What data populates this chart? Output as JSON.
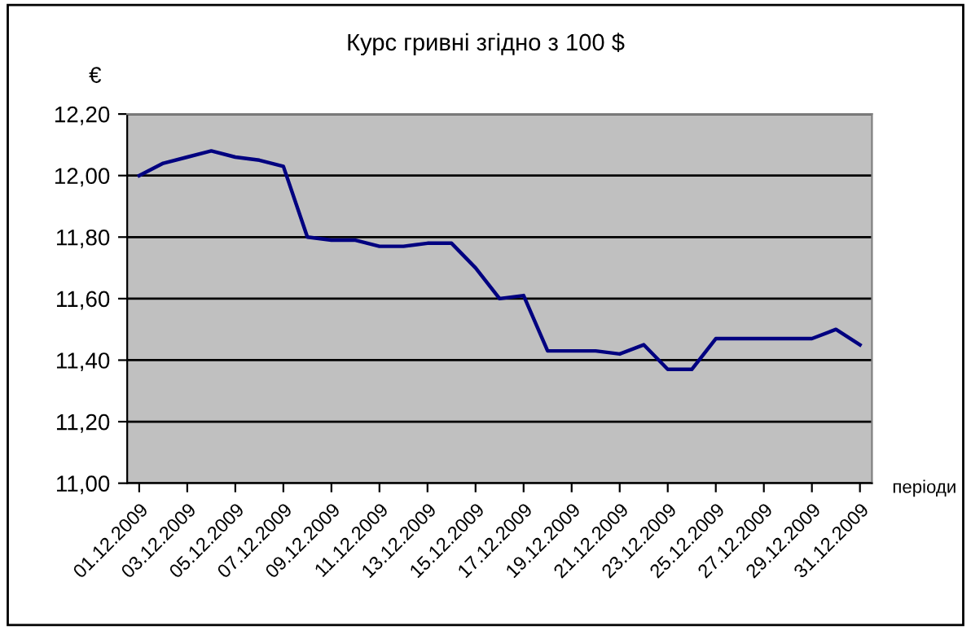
{
  "chart_data": {
    "type": "line",
    "title": "Курс гривні згідно з 100 $",
    "ylabel": "€",
    "xlabel": "періоди",
    "categories": [
      "01.12.2009",
      null,
      "03.12.2009",
      null,
      "05.12.2009",
      null,
      "07.12.2009",
      null,
      "09.12.2009",
      null,
      "11.12.2009",
      null,
      "13.12.2009",
      null,
      "15.12.2009",
      null,
      "17.12.2009",
      null,
      "19.12.2009",
      null,
      "21.12.2009",
      null,
      "23.12.2009",
      null,
      "25.12.2009",
      null,
      "27.12.2009",
      null,
      "29.12.2009",
      null,
      "31.12.2009"
    ],
    "series": [
      {
        "color": "#000080",
        "values": [
          12.0,
          12.04,
          12.06,
          12.08,
          12.06,
          12.05,
          12.03,
          11.8,
          11.79,
          11.79,
          11.77,
          11.77,
          11.78,
          11.78,
          11.7,
          11.6,
          11.61,
          11.43,
          11.43,
          11.43,
          11.42,
          11.45,
          11.37,
          11.37,
          11.47,
          11.47,
          11.47,
          11.47,
          11.47,
          11.5,
          11.45
        ]
      }
    ],
    "ylim": [
      11.0,
      12.2
    ],
    "yticks": [
      {
        "value": 11.0,
        "label": "11,00"
      },
      {
        "value": 11.2,
        "label": "11,20"
      },
      {
        "value": 11.4,
        "label": "11,40"
      },
      {
        "value": 11.6,
        "label": "11,60"
      },
      {
        "value": 11.8,
        "label": "11,80"
      },
      {
        "value": 12.0,
        "label": "12,00"
      },
      {
        "value": 12.2,
        "label": "12,20"
      }
    ],
    "grid": "y",
    "legend": false,
    "marker": "none",
    "line_style": "solid"
  }
}
